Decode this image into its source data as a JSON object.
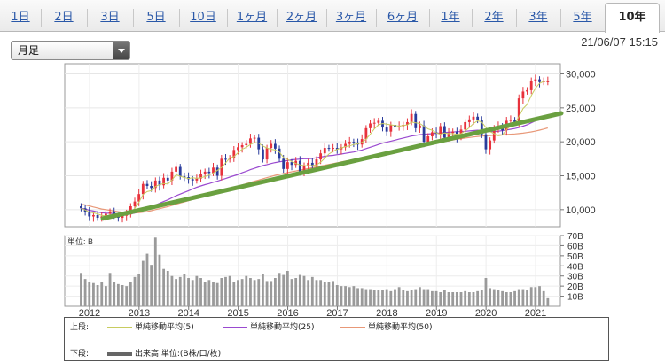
{
  "tabs": [
    {
      "label": "1日"
    },
    {
      "label": "2日"
    },
    {
      "label": "3日"
    },
    {
      "label": "5日"
    },
    {
      "label": "10日"
    },
    {
      "label": "1ヶ月"
    },
    {
      "label": "2ヶ月"
    },
    {
      "label": "3ヶ月"
    },
    {
      "label": "6ヶ月"
    },
    {
      "label": "1年"
    },
    {
      "label": "2年"
    },
    {
      "label": "3年"
    },
    {
      "label": "5年"
    },
    {
      "label": "10年"
    }
  ],
  "active_tab": "10年",
  "period_select": {
    "value": "月足"
  },
  "timestamp": "21/06/07 15:15",
  "volume_unit_label": "単位: B",
  "legend": {
    "upper_label": "上段:",
    "lower_label": "下段:",
    "ma5": "単純移動平均(5)",
    "ma25": "単純移動平均(25)",
    "ma50": "単純移動平均(50)",
    "volume": "出来高 単位:(B株/口/枚)"
  },
  "colors": {
    "up": "#e8323c",
    "down": "#2a3c9c",
    "ma5": "#c8cc60",
    "ma25": "#9a4ad0",
    "ma50": "#e89878",
    "trendline": "#6aa040",
    "volume": "#9a9a9a"
  },
  "chart_data": [
    {
      "type": "candlestick",
      "x_ticks": [
        "2012",
        "2013",
        "2014",
        "2015",
        "2016",
        "2017",
        "2018",
        "2019",
        "2020",
        "2021"
      ],
      "y_ticks": [
        "30,000",
        "25,000",
        "20,000",
        "15,000",
        "10,000"
      ],
      "ylim": [
        7500,
        31500
      ],
      "xlim": [
        2011.5,
        2021.5
      ],
      "close": [
        10200,
        9700,
        9000,
        9200,
        8800,
        9000,
        9400,
        9600,
        9100,
        8800,
        9100,
        9300,
        10500,
        11200,
        12300,
        13800,
        13500,
        13200,
        14300,
        13600,
        14700,
        14300,
        15600,
        16300,
        14900,
        14800,
        14500,
        14300,
        14600,
        15200,
        15600,
        15400,
        16200,
        15000,
        17500,
        17400,
        17600,
        18800,
        19200,
        19500,
        19700,
        20500,
        20600,
        18900,
        17400,
        19100,
        19700,
        19000,
        17500,
        16000,
        17000,
        16600,
        17200,
        15600,
        16500,
        16900,
        16400,
        17400,
        18300,
        19100,
        19000,
        19100,
        18900,
        19200,
        19700,
        20000,
        19900,
        19600,
        20400,
        22000,
        22700,
        22800,
        23100,
        22100,
        21500,
        22500,
        22200,
        22300,
        22500,
        22900,
        24100,
        22000,
        22400,
        20000,
        20800,
        21400,
        21200,
        22300,
        20600,
        21300,
        21500,
        20700,
        21800,
        22900,
        23300,
        23700,
        23200,
        21100,
        18900,
        20200,
        21900,
        22300,
        21700,
        23100,
        23200,
        22900,
        26400,
        27400,
        27600,
        28900,
        29200,
        28800,
        28900,
        28900
      ],
      "ma5": [
        10200,
        9950,
        9630,
        9530,
        9380,
        9140,
        9080,
        9200,
        9180,
        9140,
        9180,
        9260,
        9600,
        10200,
        11100,
        12240,
        12660,
        12800,
        13420,
        13680,
        13860,
        13780,
        14360,
        15160,
        14940,
        14740,
        14600,
        14700,
        14620,
        14700,
        14880,
        15100,
        15380,
        15800,
        16200,
        16900,
        17600,
        17800,
        18400,
        18900,
        19200,
        19600,
        19900,
        19800,
        19400,
        19100,
        18900,
        18800,
        18500,
        17700,
        17400,
        17100,
        16800,
        16600,
        16500,
        16500,
        16500,
        16600,
        17000,
        17600,
        18200,
        18600,
        18900,
        19100,
        19300,
        19400,
        19600,
        19700,
        19900,
        20400,
        21100,
        21900,
        22500,
        22700,
        22600,
        22500,
        22400,
        22300,
        22400,
        22500,
        22900,
        22800,
        22700,
        22300,
        21900,
        21700,
        21300,
        21100,
        21300,
        21200,
        21200,
        21100,
        21200,
        21600,
        22100,
        22700,
        23100,
        22900,
        22100,
        21500,
        21200,
        20900,
        21000,
        21800,
        22300,
        22700,
        23700,
        24900,
        25500,
        26800,
        27900,
        28600,
        28900,
        29000
      ],
      "ma25": [
        10200,
        10100,
        9900,
        9800,
        9650,
        9550,
        9480,
        9470,
        9420,
        9380,
        9340,
        9320,
        9380,
        9500,
        9700,
        9950,
        10200,
        10450,
        10700,
        10950,
        11200,
        11450,
        11750,
        12050,
        12300,
        12550,
        12800,
        13050,
        13300,
        13500,
        13700,
        13850,
        14050,
        14200,
        14400,
        14600,
        14800,
        15000,
        15200,
        15450,
        15650,
        15900,
        16100,
        16300,
        16500,
        16650,
        16800,
        16950,
        17050,
        17150,
        17250,
        17350,
        17400,
        17450,
        17500,
        17500,
        17550,
        17650,
        17750,
        17850,
        17950,
        18000,
        18100,
        18200,
        18300,
        18400,
        18500,
        18650,
        18800,
        19000,
        19200,
        19400,
        19600,
        19800,
        19950,
        20100,
        20250,
        20400,
        20550,
        20700,
        20850,
        20950,
        21050,
        21100,
        21150,
        21200,
        21250,
        21300,
        21350,
        21400,
        21450,
        21500,
        21500,
        21550,
        21600,
        21650,
        21700,
        21650,
        21550,
        21500,
        21500,
        21550,
        21650,
        21750,
        21850,
        21950,
        22100,
        22300,
        22500,
        22800,
        23100,
        23400,
        23700,
        24000
      ],
      "ma50": [
        10800,
        10700,
        10550,
        10400,
        10250,
        10100,
        10000,
        9900,
        9800,
        9700,
        9620,
        9560,
        9520,
        9520,
        9550,
        9620,
        9720,
        9850,
        10000,
        10150,
        10300,
        10450,
        10620,
        10800,
        10980,
        11150,
        11320,
        11500,
        11680,
        11860,
        12040,
        12220,
        12400,
        12580,
        12760,
        12940,
        13120,
        13300,
        13480,
        13660,
        13840,
        14020,
        14200,
        14380,
        14550,
        14720,
        14890,
        15060,
        15200,
        15330,
        15460,
        15590,
        15710,
        15830,
        15950,
        16070,
        16190,
        16310,
        16430,
        16550,
        16670,
        16790,
        16910,
        17030,
        17150,
        17270,
        17390,
        17510,
        17630,
        17750,
        17870,
        17990,
        18110,
        18230,
        18350,
        18470,
        18590,
        18710,
        18830,
        18950,
        19070,
        19190,
        19310,
        19430,
        19550,
        19670,
        19790,
        19910,
        20030,
        20150,
        20270,
        20390,
        20470,
        20550,
        20630,
        20710,
        20790,
        20840,
        20880,
        20920,
        20960,
        21000,
        21040,
        21080,
        21120,
        21160,
        21210,
        21280,
        21360,
        21460,
        21580,
        21720,
        21880,
        22040
      ]
    },
    {
      "type": "bar",
      "y_ticks": [
        "70B",
        "60B",
        "50B",
        "40B",
        "30B",
        "20B",
        "10B"
      ],
      "ylim": [
        0,
        70
      ],
      "volume": [
        33,
        27,
        24,
        23,
        21,
        24,
        20,
        33,
        24,
        22,
        21,
        20,
        24,
        29,
        32,
        45,
        52,
        41,
        68,
        51,
        37,
        35,
        30,
        27,
        29,
        32,
        28,
        26,
        30,
        28,
        24,
        26,
        24,
        23,
        28,
        29,
        30,
        24,
        26,
        27,
        30,
        28,
        26,
        27,
        32,
        25,
        25,
        28,
        33,
        31,
        35,
        27,
        28,
        31,
        30,
        26,
        29,
        26,
        26,
        24,
        24,
        25,
        21,
        20,
        20,
        19,
        20,
        18,
        18,
        17,
        17,
        16,
        16,
        16,
        17,
        15,
        17,
        19,
        16,
        15,
        16,
        17,
        19,
        17,
        17,
        15,
        15,
        14,
        16,
        14,
        14,
        14,
        14,
        15,
        14,
        14,
        15,
        16,
        28,
        18,
        17,
        16,
        15,
        14,
        14,
        15,
        17,
        17,
        16,
        19,
        19,
        20,
        15,
        8
      ]
    }
  ],
  "trendline": {
    "from": [
      2012.27,
      8700
    ],
    "to": [
      2021.5,
      24200
    ]
  }
}
